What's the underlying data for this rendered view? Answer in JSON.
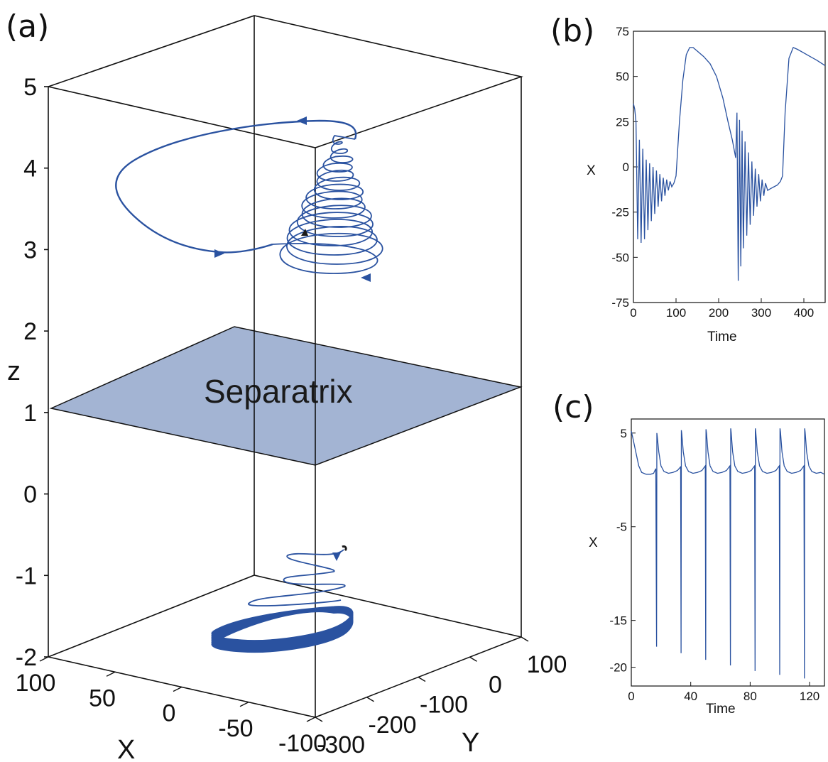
{
  "colors": {
    "trace": "#2a52a0",
    "plane": "#a3b4d3",
    "axes": "#111111"
  },
  "chart_data": [
    {
      "id": "a",
      "type": "line3d",
      "panel_label": "(a)",
      "plane_label": "Separatrix",
      "plane_z": 1.1,
      "xlabel": "X",
      "ylabel": "Y",
      "zlabel": "z",
      "xlim": [
        -100,
        100
      ],
      "ylim": [
        -300,
        100
      ],
      "zlim": [
        -2,
        5
      ],
      "xticks": [
        "100",
        "50",
        "0",
        "-50",
        "-100"
      ],
      "yticks": [
        "-300",
        "-200",
        "-100",
        "0",
        "100"
      ],
      "zticks": [
        "-2",
        "-1",
        "0",
        "1",
        "2",
        "3",
        "4",
        "5"
      ]
    },
    {
      "id": "b",
      "type": "line",
      "panel_label": "(b)",
      "xlabel": "Time",
      "ylabel": "X",
      "xlim": [
        0,
        450
      ],
      "ylim": [
        -75,
        75
      ],
      "xticks": [
        0,
        100,
        200,
        300,
        400
      ],
      "yticks": [
        75,
        50,
        25,
        0,
        -25,
        -50,
        -75
      ],
      "series": [
        {
          "x": [
            0,
            3,
            6,
            10,
            14,
            18,
            22,
            26,
            30,
            34,
            38,
            42,
            46,
            50,
            54,
            58,
            62,
            66,
            70,
            74,
            78,
            82,
            86,
            90,
            95,
            100,
            108,
            116,
            124,
            132,
            140,
            150,
            165,
            180,
            195,
            210,
            222,
            232,
            240,
            243,
            246,
            249,
            252,
            255,
            258,
            262,
            266,
            270,
            274,
            278,
            282,
            286,
            290,
            294,
            298,
            302,
            306,
            310,
            315,
            322,
            330,
            338,
            345,
            350,
            356,
            365,
            375,
            385,
            400,
            415,
            430,
            450
          ],
          "y": [
            35,
            32,
            25,
            -40,
            15,
            -42,
            10,
            -40,
            4,
            -35,
            2,
            -30,
            0,
            -26,
            -2,
            -22,
            -4,
            -19,
            -6,
            -16,
            -7,
            -13,
            -8,
            -11,
            -9,
            -5,
            25,
            48,
            62,
            66,
            66,
            64,
            61,
            57,
            50,
            38,
            25,
            15,
            5,
            30,
            -63,
            26,
            -55,
            20,
            -45,
            14,
            -38,
            8,
            -32,
            3,
            -27,
            -1,
            -22,
            -4,
            -19,
            -7,
            -16,
            -9,
            -13,
            -12,
            -11,
            -10,
            -8,
            -5,
            30,
            60,
            66,
            65,
            63,
            61,
            59,
            56
          ]
        }
      ]
    },
    {
      "id": "c",
      "type": "line",
      "panel_label": "(c)",
      "xlabel": "Time",
      "ylabel": "X",
      "xlim": [
        0,
        130
      ],
      "ylim": [
        -22,
        6.5
      ],
      "xticks": [
        0,
        40,
        80,
        120
      ],
      "yticks": [
        5,
        -5,
        -15,
        -20
      ],
      "series": [
        {
          "x": [
            0,
            1,
            3,
            5,
            7,
            10,
            13,
            15,
            16.5,
            17,
            17.2,
            17.5,
            18.5,
            20,
            22,
            25,
            28,
            31,
            33.2,
            33.5,
            33.7,
            34,
            35,
            36.5,
            38.5,
            41.5,
            44.5,
            47.5,
            49.8,
            50.1,
            50.3,
            50.6,
            51.6,
            53,
            55,
            58,
            61,
            64,
            66.4,
            66.7,
            66.9,
            67.2,
            68.2,
            69.7,
            71.7,
            74.7,
            77.7,
            80.7,
            83,
            83.3,
            83.5,
            83.8,
            84.8,
            86.3,
            88.3,
            91.3,
            94.3,
            97.3,
            99.6,
            99.9,
            100.1,
            100.4,
            101.4,
            102.9,
            104.9,
            107.9,
            110.9,
            113.9,
            116.2,
            116.5,
            116.7,
            117,
            118,
            119.5,
            121.5,
            124.5,
            127.5,
            130
          ],
          "y": [
            5.2,
            4.5,
            3,
            1.5,
            0.8,
            0.6,
            0.6,
            0.7,
            1.2,
            -17.8,
            5.0,
            4.6,
            3,
            1.5,
            0.9,
            0.7,
            0.8,
            1.0,
            1.4,
            -18.5,
            5.3,
            4.9,
            3,
            1.5,
            0.9,
            0.7,
            0.8,
            1.0,
            1.5,
            -19.2,
            5.4,
            5.0,
            3,
            1.5,
            0.9,
            0.7,
            0.8,
            1.0,
            1.5,
            -19.8,
            5.5,
            5.1,
            3,
            1.5,
            0.9,
            0.7,
            0.8,
            1.0,
            1.5,
            -20.4,
            5.5,
            5.1,
            3,
            1.5,
            0.9,
            0.7,
            0.8,
            1.0,
            1.5,
            -20.8,
            5.5,
            5.1,
            3,
            1.5,
            0.9,
            0.7,
            0.8,
            1.0,
            1.5,
            -21.2,
            5.5,
            5.1,
            3,
            1.5,
            0.9,
            0.7,
            0.8,
            0.6
          ]
        }
      ]
    }
  ]
}
